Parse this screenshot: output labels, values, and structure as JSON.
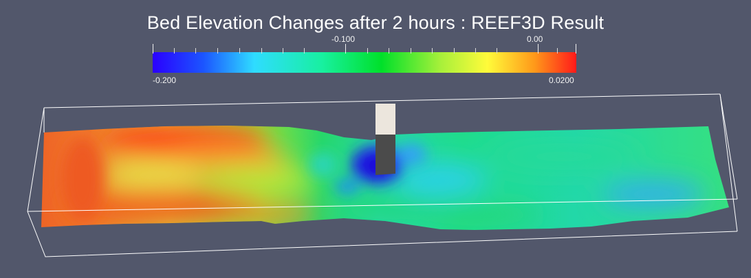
{
  "scene": {
    "title": "Bed Elevation Changes after 2 hours : REEF3D Result",
    "colorbar": {
      "min_label": "-0.200",
      "max_label": "0.0200",
      "mid_label": "-0.100",
      "zero_label": "0.00"
    },
    "colors": {
      "background": "#52576b",
      "outline": "#ffffff",
      "pier_top": "#ece6dd",
      "pier_side": "#4b4b4b"
    }
  }
}
